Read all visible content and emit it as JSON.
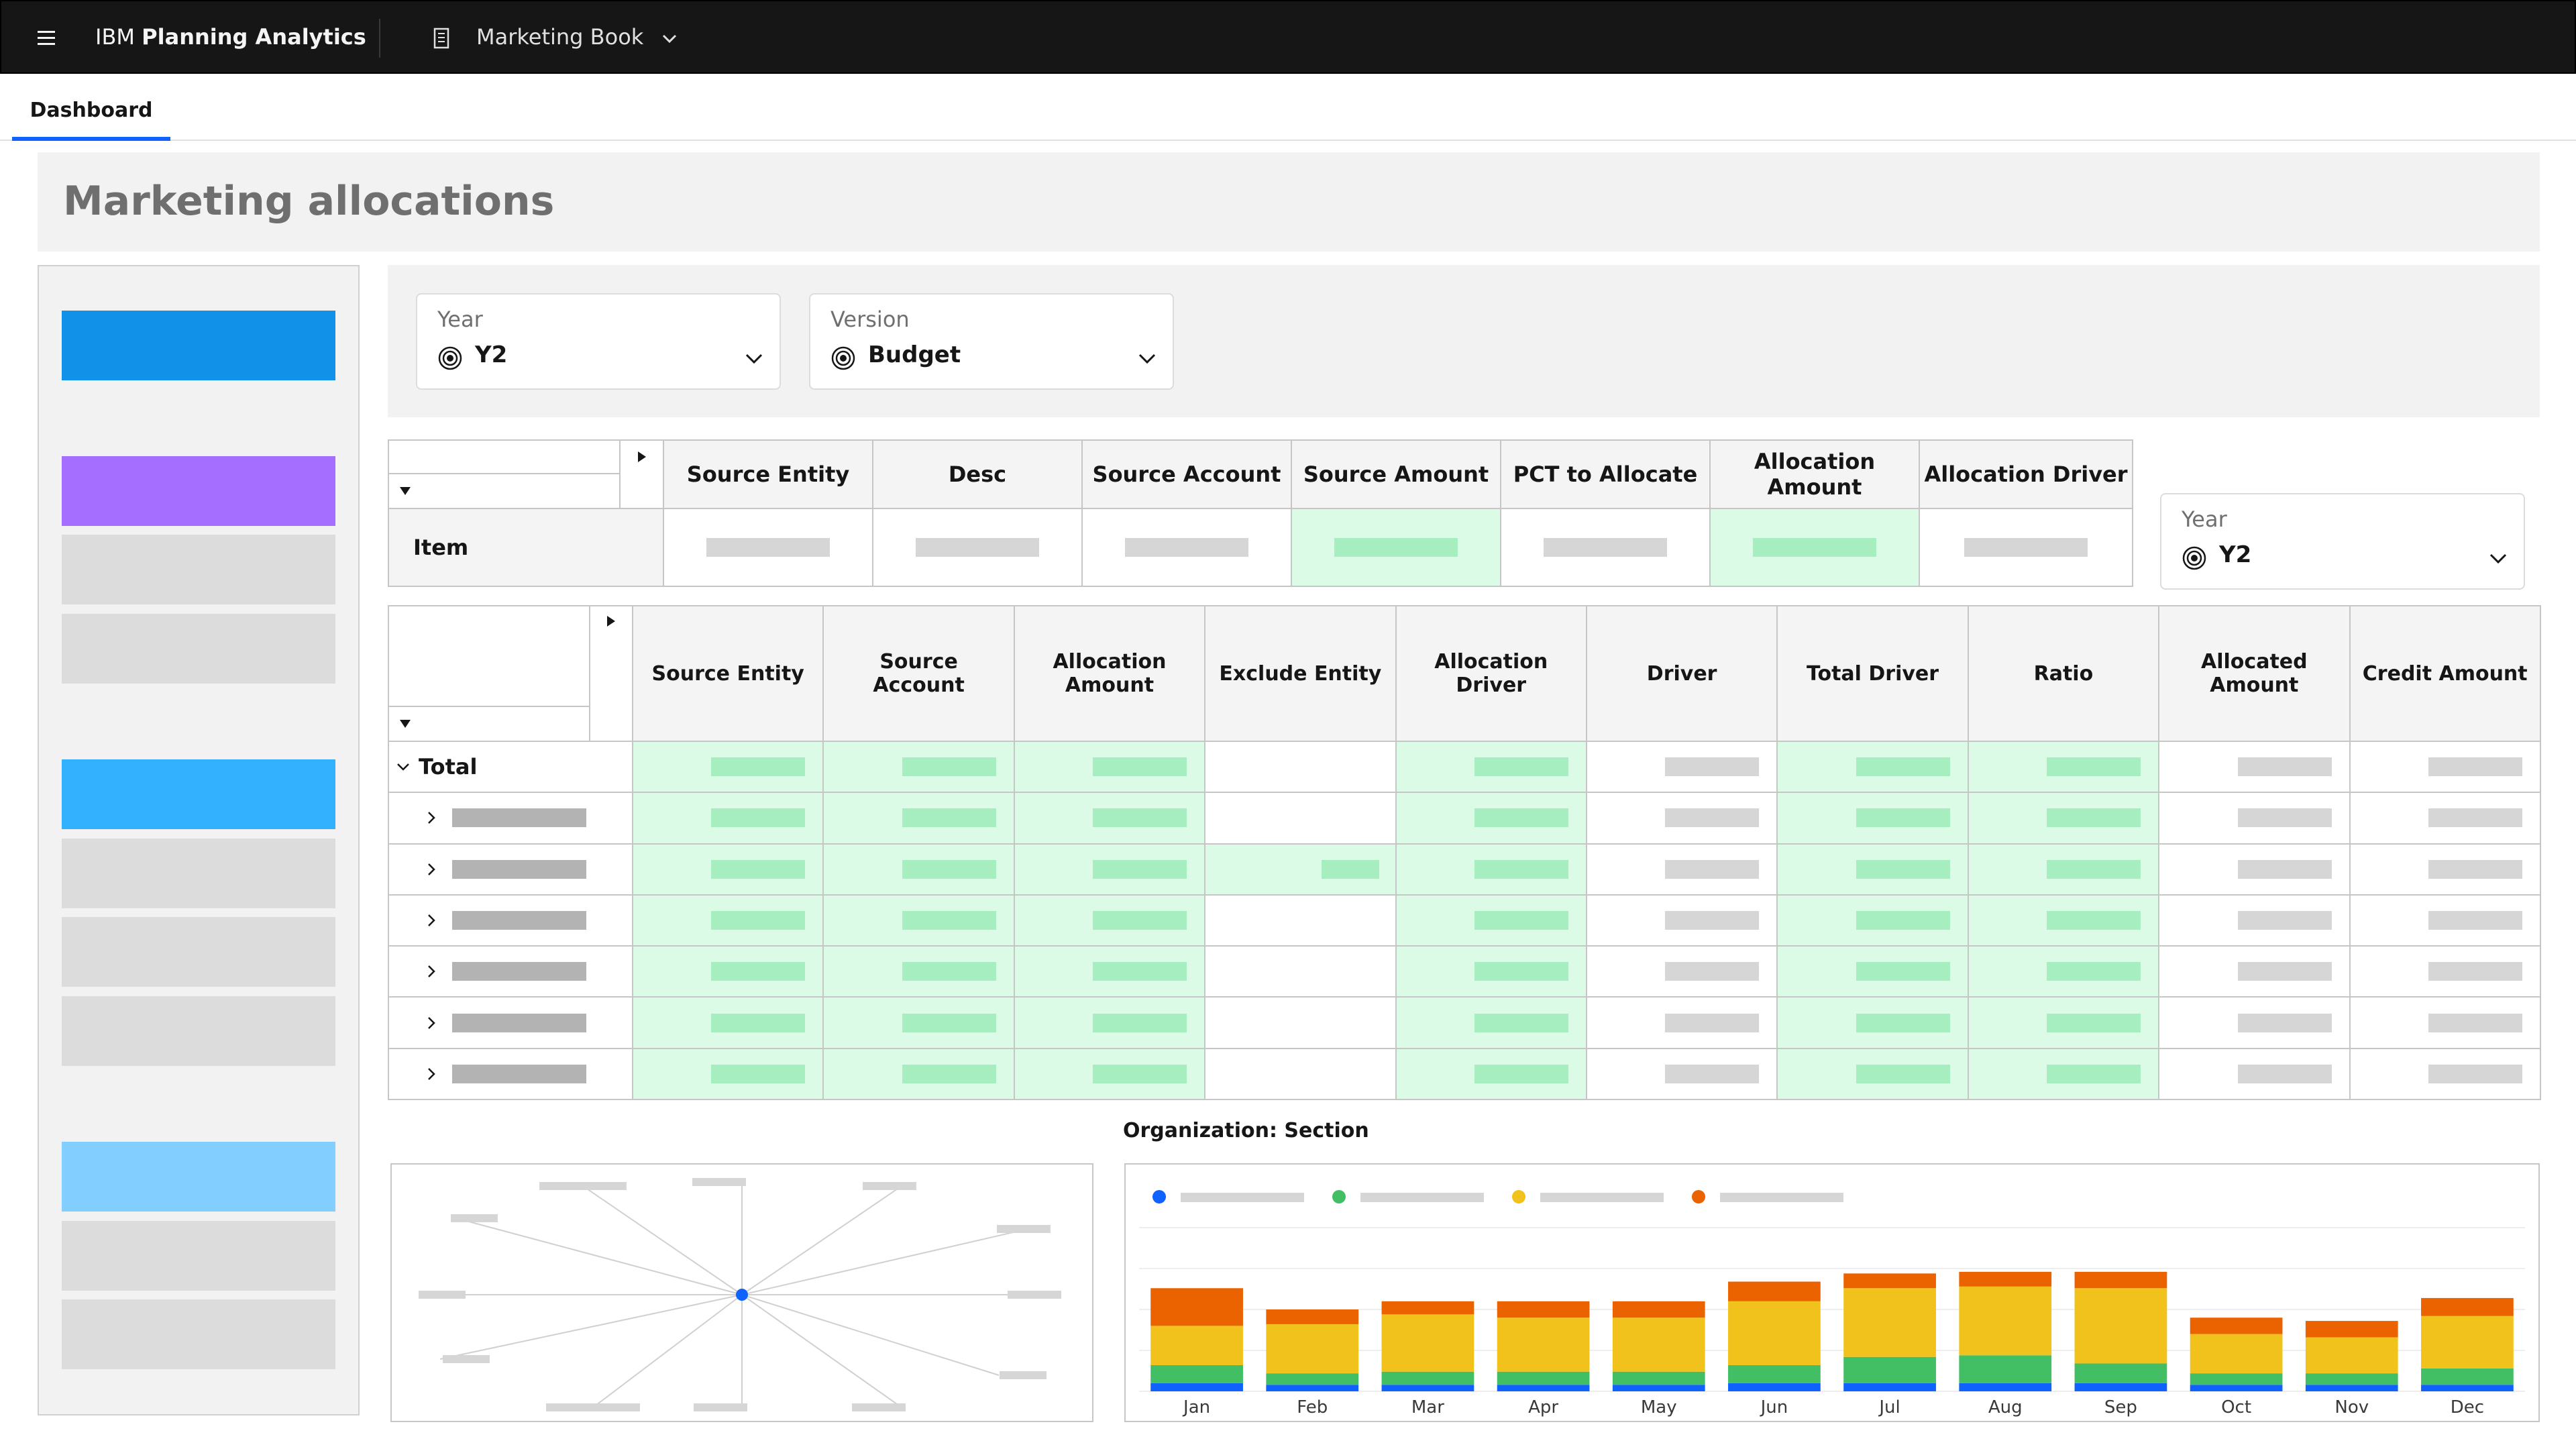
{
  "header": {
    "brand_prefix": "IBM",
    "brand_name": "Planning Analytics",
    "book_name": "Marketing Book"
  },
  "tabs": [
    {
      "label": "Dashboard",
      "active": true
    }
  ],
  "page_title": "Marketing allocations",
  "left_panel": {
    "blocks": [
      {
        "color": "#1192e8"
      },
      {
        "color": "#a56eff"
      },
      {
        "color": "#dcdcdc"
      },
      {
        "color": "#dcdcdc"
      },
      {
        "color": "#33b1ff"
      },
      {
        "color": "#dcdcdc"
      },
      {
        "color": "#dcdcdc"
      },
      {
        "color": "#dcdcdc"
      },
      {
        "color": "#82cfff"
      },
      {
        "color": "#dcdcdc"
      },
      {
        "color": "#dcdcdc"
      }
    ]
  },
  "filters": {
    "year": {
      "label": "Year",
      "value": "Y2"
    },
    "version": {
      "label": "Version",
      "value": "Budget"
    },
    "year_side": {
      "label": "Year",
      "value": "Y2"
    }
  },
  "top_grid": {
    "columns": [
      "Source Entity",
      "Desc",
      "Source Account",
      "Source Amount",
      "PCT to Allocate",
      "Allocation Amount",
      "Allocation Driver"
    ],
    "row_label": "Item",
    "highlighted_columns": [
      3,
      5
    ]
  },
  "main_grid": {
    "columns": [
      "Source Entity",
      "Source Account",
      "Allocation Amount",
      "Exclude Entity",
      "Allocation Driver",
      "Driver",
      "Total Driver",
      "Ratio",
      "Allocated Amount",
      "Credit Amount"
    ],
    "total_label": "Total",
    "green_columns": [
      0,
      1,
      2,
      4,
      6,
      7
    ],
    "child_rows": 6
  },
  "chart_section": {
    "title": "Organization: Section"
  },
  "chart_data": {
    "type": "bar",
    "stacked": true,
    "categories": [
      "Jan",
      "Feb",
      "Mar",
      "Apr",
      "May",
      "Jun",
      "Jul",
      "Aug",
      "Sep",
      "Oct",
      "Nov",
      "Dec"
    ],
    "series": [
      {
        "color": "#0f62fe",
        "values": [
          5,
          4,
          4,
          4,
          4,
          5,
          5,
          5,
          5,
          4,
          4,
          4
        ]
      },
      {
        "color": "#42be65",
        "values": [
          11,
          7,
          8,
          8,
          8,
          11,
          16,
          17,
          12,
          7,
          7,
          10
        ]
      },
      {
        "color": "#f1c21b",
        "values": [
          24,
          30,
          35,
          33,
          33,
          39,
          42,
          42,
          46,
          24,
          22,
          32
        ]
      },
      {
        "color": "#eb6200",
        "values": [
          23,
          9,
          8,
          10,
          10,
          12,
          9,
          9,
          10,
          10,
          10,
          11
        ]
      }
    ],
    "ylim": [
      0,
      100
    ],
    "grid": true,
    "legend": "top-left"
  }
}
